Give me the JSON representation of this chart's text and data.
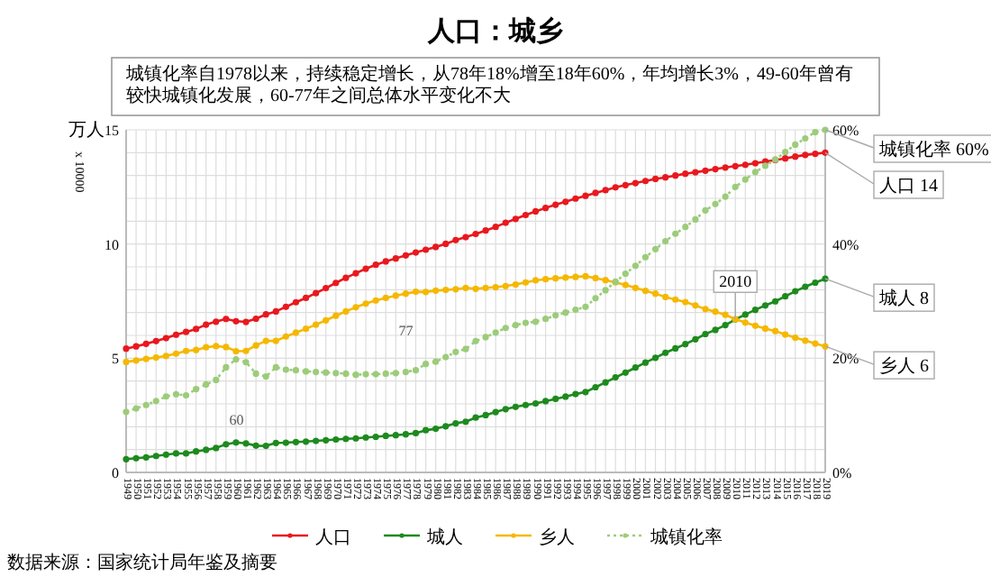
{
  "chart_data": {
    "type": "line",
    "title": "人口：城乡",
    "subtitle": "城镇化率自1978以来，持续稳定增长，从78年18%增至18年60%，年均增长3%，49-60年曾有较快城镇化发展，60-77年之间总体水平变化不大",
    "ylabel": "万人",
    "categories": [
      "1949",
      "1950",
      "1951",
      "1952",
      "1953",
      "1954",
      "1955",
      "1956",
      "1957",
      "1958",
      "1959",
      "1960",
      "1961",
      "1962",
      "1963",
      "1964",
      "1965",
      "1966",
      "1967",
      "1968",
      "1969",
      "1970",
      "1971",
      "1972",
      "1973",
      "1974",
      "1975",
      "1976",
      "1977",
      "1978",
      "1979",
      "1980",
      "1981",
      "1982",
      "1983",
      "1984",
      "1985",
      "1986",
      "1987",
      "1988",
      "1989",
      "1990",
      "1991",
      "1992",
      "1993",
      "1994",
      "1995",
      "1996",
      "1997",
      "1998",
      "1999",
      "2000",
      "2001",
      "2002",
      "2003",
      "2004",
      "2005",
      "2006",
      "2007",
      "2008",
      "2009",
      "2010",
      "2011",
      "2012",
      "2013",
      "2014",
      "2015",
      "2016",
      "2017",
      "2018",
      "2019"
    ],
    "series": [
      {
        "name": "人口",
        "color": "#e8191e",
        "values": [
          5.42,
          5.52,
          5.63,
          5.75,
          5.88,
          6.03,
          6.15,
          6.28,
          6.47,
          6.6,
          6.72,
          6.62,
          6.59,
          6.73,
          6.92,
          7.05,
          7.25,
          7.45,
          7.64,
          7.85,
          8.07,
          8.3,
          8.52,
          8.72,
          8.92,
          9.09,
          9.24,
          9.37,
          9.5,
          9.63,
          9.75,
          9.87,
          10.01,
          10.17,
          10.3,
          10.44,
          10.59,
          10.75,
          10.93,
          11.1,
          11.27,
          11.43,
          11.58,
          11.72,
          11.85,
          11.99,
          12.11,
          12.24,
          12.36,
          12.48,
          12.58,
          12.67,
          12.76,
          12.85,
          12.92,
          13.0,
          13.08,
          13.14,
          13.21,
          13.28,
          13.35,
          13.41,
          13.47,
          13.54,
          13.61,
          13.68,
          13.75,
          13.83,
          13.9,
          13.95,
          14.0
        ]
      },
      {
        "name": "城人",
        "color": "#1e8a1e",
        "values": [
          0.58,
          0.62,
          0.66,
          0.72,
          0.78,
          0.83,
          0.83,
          0.92,
          0.99,
          1.07,
          1.23,
          1.31,
          1.27,
          1.17,
          1.16,
          1.29,
          1.3,
          1.33,
          1.35,
          1.38,
          1.41,
          1.44,
          1.47,
          1.49,
          1.53,
          1.56,
          1.6,
          1.63,
          1.67,
          1.72,
          1.85,
          1.91,
          2.02,
          2.15,
          2.22,
          2.4,
          2.51,
          2.64,
          2.77,
          2.87,
          2.95,
          3.02,
          3.12,
          3.22,
          3.32,
          3.43,
          3.52,
          3.73,
          3.94,
          4.16,
          4.37,
          4.59,
          4.81,
          5.02,
          5.24,
          5.43,
          5.62,
          5.83,
          6.06,
          6.24,
          6.45,
          6.7,
          6.91,
          7.12,
          7.31,
          7.49,
          7.71,
          7.93,
          8.13,
          8.31,
          8.48
        ]
      },
      {
        "name": "乡人",
        "color": "#f5b800",
        "values": [
          4.84,
          4.9,
          4.97,
          5.03,
          5.1,
          5.2,
          5.32,
          5.36,
          5.48,
          5.53,
          5.49,
          5.31,
          5.32,
          5.56,
          5.76,
          5.76,
          5.95,
          6.12,
          6.29,
          6.47,
          6.66,
          6.86,
          7.05,
          7.23,
          7.39,
          7.53,
          7.64,
          7.74,
          7.83,
          7.91,
          7.9,
          7.96,
          7.99,
          8.02,
          8.08,
          8.04,
          8.08,
          8.11,
          8.16,
          8.23,
          8.32,
          8.41,
          8.46,
          8.5,
          8.53,
          8.56,
          8.59,
          8.51,
          8.42,
          8.32,
          8.21,
          8.08,
          7.95,
          7.83,
          7.68,
          7.57,
          7.46,
          7.31,
          7.15,
          7.04,
          6.9,
          6.71,
          6.56,
          6.42,
          6.3,
          6.19,
          6.04,
          5.9,
          5.77,
          5.64,
          5.52
        ]
      },
      {
        "name": "城镇化率",
        "color": "#9ccc7a",
        "axis": "y2",
        "line_style": "dotted",
        "values": [
          10.6,
          11.2,
          11.8,
          12.5,
          13.3,
          13.7,
          13.5,
          14.6,
          15.4,
          16.2,
          18.4,
          19.8,
          19.3,
          17.3,
          16.8,
          18.4,
          18.0,
          17.9,
          17.7,
          17.6,
          17.5,
          17.4,
          17.3,
          17.1,
          17.2,
          17.2,
          17.3,
          17.4,
          17.6,
          17.9,
          19.0,
          19.4,
          20.2,
          21.1,
          21.6,
          23.0,
          23.7,
          24.5,
          25.3,
          25.8,
          26.2,
          26.4,
          26.9,
          27.5,
          28.0,
          28.5,
          29.0,
          30.5,
          31.9,
          33.4,
          34.8,
          36.2,
          37.7,
          39.1,
          40.5,
          41.8,
          43.0,
          44.3,
          45.9,
          47.0,
          48.3,
          50.0,
          51.3,
          52.6,
          53.7,
          54.8,
          56.1,
          57.4,
          58.5,
          59.6,
          60.0
        ]
      }
    ],
    "ylim": [
      0,
      15
    ],
    "yticks": [
      0,
      {
        "value": 1,
        "label": null
      },
      {
        "value": 2,
        "label": null
      },
      {
        "value": 3,
        "label": null
      },
      {
        "value": 4,
        "label": null
      },
      5,
      {
        "value": 6,
        "label": null
      },
      {
        "value": 7,
        "label": null
      },
      {
        "value": 8,
        "label": null
      },
      {
        "value": 9,
        "label": null
      },
      10,
      {
        "value": 11,
        "label": null
      },
      {
        "value": 12,
        "label": null
      },
      {
        "value": 13,
        "label": null
      },
      {
        "value": 14,
        "label": null
      },
      15
    ],
    "y2lim": [
      0,
      60
    ],
    "y2ticks": [
      {
        "value": 0,
        "label": "0%"
      },
      {
        "value": 20,
        "label": "20%"
      },
      {
        "value": 40,
        "label": "40%"
      },
      {
        "value": 60,
        "label": "60%"
      }
    ],
    "grid": true,
    "marker": "circle",
    "line_style": "solid",
    "legend": "bottom",
    "annotations": [
      "x 10000",
      "数据来源：国家统计局年鉴及摘要",
      "60",
      "77",
      {
        "text": "2010",
        "x": "2010",
        "y": 6.7
      },
      {
        "text": "城镇化率 60%",
        "x": "2019",
        "y": 15
      },
      {
        "text": "人口 14",
        "x": "2019",
        "y": 14.0
      },
      {
        "text": "城人 8",
        "x": "2019",
        "y": 8.48
      },
      {
        "text": "乡人 6",
        "x": "2019",
        "y": 5.52
      }
    ]
  }
}
